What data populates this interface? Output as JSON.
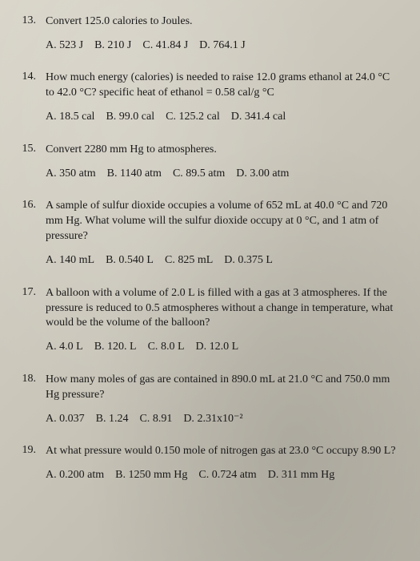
{
  "page": {
    "background_color": "#d0ccc0",
    "text_color": "#1a1a1a",
    "font_family": "Times New Roman",
    "base_font_size": 14
  },
  "questions": [
    {
      "number": "13.",
      "text": "Convert 125.0 calories to Joules.",
      "choices": [
        {
          "label": "A.",
          "value": "523 J"
        },
        {
          "label": "B.",
          "value": "210 J"
        },
        {
          "label": "C.",
          "value": "41.84 J"
        },
        {
          "label": "D.",
          "value": "764.1 J"
        }
      ]
    },
    {
      "number": "14.",
      "text": "How much energy (calories) is needed to raise 12.0 grams ethanol at 24.0 °C to 42.0 °C?  specific heat of ethanol = 0.58 cal/g °C",
      "choices": [
        {
          "label": "A.",
          "value": "18.5 cal"
        },
        {
          "label": "B.",
          "value": "99.0 cal"
        },
        {
          "label": "C.",
          "value": "125.2 cal"
        },
        {
          "label": "D.",
          "value": "341.4 cal"
        }
      ]
    },
    {
      "number": "15.",
      "text": "Convert 2280 mm Hg to atmospheres.",
      "choices": [
        {
          "label": "A.",
          "value": "350 atm"
        },
        {
          "label": "B.",
          "value": "1140 atm"
        },
        {
          "label": "C.",
          "value": "89.5 atm"
        },
        {
          "label": "D.",
          "value": "3.00 atm"
        }
      ]
    },
    {
      "number": "16.",
      "text": "A sample of sulfur dioxide occupies a volume of 652 mL at 40.0 °C and 720 mm Hg.  What volume will the sulfur dioxide occupy at 0 °C, and 1 atm of pressure?",
      "choices": [
        {
          "label": "A.",
          "value": "140 mL"
        },
        {
          "label": "B.",
          "value": "0.540 L"
        },
        {
          "label": "C.",
          "value": "825 mL"
        },
        {
          "label": "D.",
          "value": "0.375 L"
        }
      ]
    },
    {
      "number": "17.",
      "text": "A balloon with a volume of 2.0 L is filled with a gas at 3 atmospheres. If the pressure is reduced to 0.5 atmospheres without a change in temperature, what would be the volume of the balloon?",
      "choices": [
        {
          "label": "A.",
          "value": "4.0 L"
        },
        {
          "label": "B.",
          "value": "120. L"
        },
        {
          "label": "C.",
          "value": "8.0 L"
        },
        {
          "label": "D.",
          "value": "12.0 L"
        }
      ]
    },
    {
      "number": "18.",
      "text": "How many moles of gas are contained in 890.0 mL at 21.0 °C and 750.0 mm Hg pressure?",
      "choices": [
        {
          "label": "A.",
          "value": "0.037"
        },
        {
          "label": "B.",
          "value": "1.24"
        },
        {
          "label": "C.",
          "value": "8.91"
        },
        {
          "label": "D.",
          "value": "2.31x10⁻²"
        }
      ]
    },
    {
      "number": "19.",
      "text": "At what pressure would 0.150 mole of nitrogen gas at 23.0 °C occupy 8.90 L?",
      "choices": [
        {
          "label": "A.",
          "value": "0.200 atm"
        },
        {
          "label": "B.",
          "value": "1250 mm Hg"
        },
        {
          "label": "C.",
          "value": "0.724 atm"
        },
        {
          "label": "D.",
          "value": "311 mm Hg"
        }
      ],
      "wrap_last": true
    }
  ]
}
